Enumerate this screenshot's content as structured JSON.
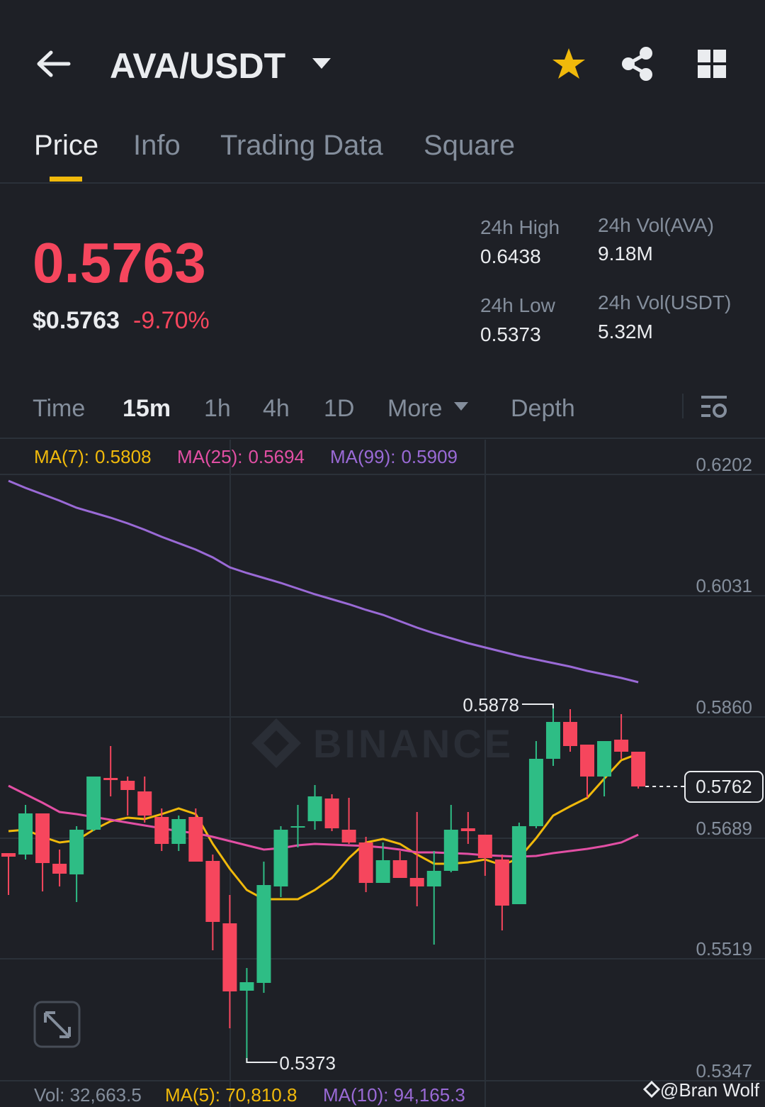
{
  "header": {
    "title": "AVA/USDT"
  },
  "tabs": [
    "Price",
    "Info",
    "Trading Data",
    "Square"
  ],
  "ticker": {
    "last_price": "0.5763",
    "usd_price": "$0.5763",
    "change": "-9.70%",
    "stats": [
      {
        "label": "24h High",
        "value": "0.6438"
      },
      {
        "label": "24h Vol(AVA)",
        "value": "9.18M"
      },
      {
        "label": "24h Low",
        "value": "0.5373"
      },
      {
        "label": "24h Vol(USDT)",
        "value": "5.32M"
      }
    ]
  },
  "intervals": [
    "Time",
    "15m",
    "1h",
    "4h",
    "1D",
    "More",
    "Depth"
  ],
  "chart_data": {
    "type": "candlestick",
    "up_color": "#2ebd85",
    "down_color": "#f6465d",
    "open": [
      0.5668,
      0.5666,
      0.5724,
      0.5653,
      0.5638,
      0.5701,
      0.5774,
      0.577,
      0.5755,
      0.5719,
      0.5681,
      0.5719,
      0.5657,
      0.5569,
      0.5474,
      0.5485,
      0.5621,
      0.5704,
      0.5713,
      0.5745,
      0.5701,
      0.5683,
      0.5626,
      0.5658,
      0.5633,
      0.5621,
      0.5643,
      0.5703,
      0.5694,
      0.5659,
      0.5596,
      0.5706,
      0.5801,
      0.5853,
      0.5821,
      0.5776,
      0.5828,
      0.5811
    ],
    "high": [
      0.5668,
      0.5736,
      0.5724,
      0.5673,
      0.5706,
      0.5776,
      0.5819,
      0.5776,
      0.5776,
      0.5731,
      0.5721,
      0.5731,
      0.5666,
      0.5609,
      0.5506,
      0.5656,
      0.5706,
      0.5736,
      0.5764,
      0.5751,
      0.5746,
      0.5691,
      0.5683,
      0.5671,
      0.5726,
      0.5671,
      0.5736,
      0.5726,
      0.5694,
      0.5666,
      0.5711,
      0.5826,
      0.5878,
      0.5871,
      0.5821,
      0.5826,
      0.5864,
      0.5811
    ],
    "low": [
      0.5609,
      0.5659,
      0.5614,
      0.5621,
      0.5599,
      0.5699,
      0.5748,
      0.5721,
      0.5711,
      0.5671,
      0.5671,
      0.5656,
      0.5531,
      0.5421,
      0.5373,
      0.5471,
      0.5606,
      0.5676,
      0.5701,
      0.5699,
      0.5681,
      0.5613,
      0.5626,
      0.5633,
      0.5593,
      0.5539,
      0.5641,
      0.5681,
      0.5636,
      0.5559,
      0.5596,
      0.5703,
      0.5791,
      0.5811,
      0.5746,
      0.5748,
      0.5801,
      0.5759
    ],
    "close": [
      0.5663,
      0.5724,
      0.5654,
      0.5639,
      0.5701,
      0.5776,
      0.5771,
      0.5757,
      0.5721,
      0.5681,
      0.5716,
      0.5656,
      0.5571,
      0.5473,
      0.5486,
      0.5623,
      0.5701,
      0.5706,
      0.5748,
      0.5703,
      0.5683,
      0.5626,
      0.5658,
      0.5633,
      0.5621,
      0.5643,
      0.5701,
      0.5699,
      0.5661,
      0.5594,
      0.5706,
      0.5801,
      0.5853,
      0.5819,
      0.5776,
      0.5826,
      0.5811,
      0.5762
    ],
    "moving_averages": [
      {
        "name": "MA(7):",
        "value": 0.5808,
        "color": "#f0b90b",
        "values": [
          0.5699,
          0.5701,
          0.5691,
          0.5683,
          0.5686,
          0.5701,
          0.5713,
          0.5718,
          0.5716,
          0.5723,
          0.5731,
          0.5723,
          0.5681,
          0.5646,
          0.5616,
          0.5603,
          0.5603,
          0.5603,
          0.5616,
          0.5633,
          0.5661,
          0.5683,
          0.5688,
          0.5681,
          0.5666,
          0.5653,
          0.5653,
          0.5655,
          0.5659,
          0.5651,
          0.5661,
          0.5689,
          0.5721,
          0.5734,
          0.5746,
          0.5773,
          0.5799,
          0.5808
        ]
      },
      {
        "name": "MA(25):",
        "value": 0.5694,
        "color": "#e24fa4",
        "values": [
          0.5763,
          0.5751,
          0.5739,
          0.5726,
          0.5723,
          0.5719,
          0.5715,
          0.5711,
          0.5707,
          0.5703,
          0.5699,
          0.5696,
          0.5691,
          0.5685,
          0.5679,
          0.5673,
          0.5675,
          0.5679,
          0.5681,
          0.568,
          0.5679,
          0.5678,
          0.5676,
          0.5673,
          0.5669,
          0.5669,
          0.5668,
          0.5667,
          0.5665,
          0.5664,
          0.5663,
          0.5664,
          0.5668,
          0.5671,
          0.5674,
          0.5678,
          0.5683,
          0.5694
        ]
      },
      {
        "name": "MA(99):",
        "value": 0.5909,
        "color": "#9a6ad6",
        "values": [
          0.6193,
          0.6183,
          0.6174,
          0.6165,
          0.6155,
          0.6148,
          0.6141,
          0.6133,
          0.6124,
          0.6114,
          0.6105,
          0.6096,
          0.6085,
          0.6071,
          0.6063,
          0.6056,
          0.6049,
          0.6041,
          0.6033,
          0.6026,
          0.6019,
          0.6011,
          0.6004,
          0.5995,
          0.5986,
          0.5978,
          0.5971,
          0.5964,
          0.5958,
          0.5952,
          0.5946,
          0.5941,
          0.5936,
          0.5931,
          0.5925,
          0.592,
          0.5915,
          0.5909
        ]
      }
    ],
    "ylim": [
      0.5341,
      0.6251
    ],
    "yticks": [
      0.6202,
      0.6031,
      {
        "value": 0.586,
        "label": "0.5860"
      },
      0.5689,
      0.5519,
      0.5347
    ],
    "grid": true,
    "high_label": 0.5878,
    "low_label": 0.5373,
    "last_price": 0.5762,
    "watermark": "BINANCE"
  },
  "volume": [
    "Vol: 32,663.5",
    "MA(5): 70,810.8",
    "MA(10): 94,165.3"
  ],
  "credit": "@Bran Wolf"
}
